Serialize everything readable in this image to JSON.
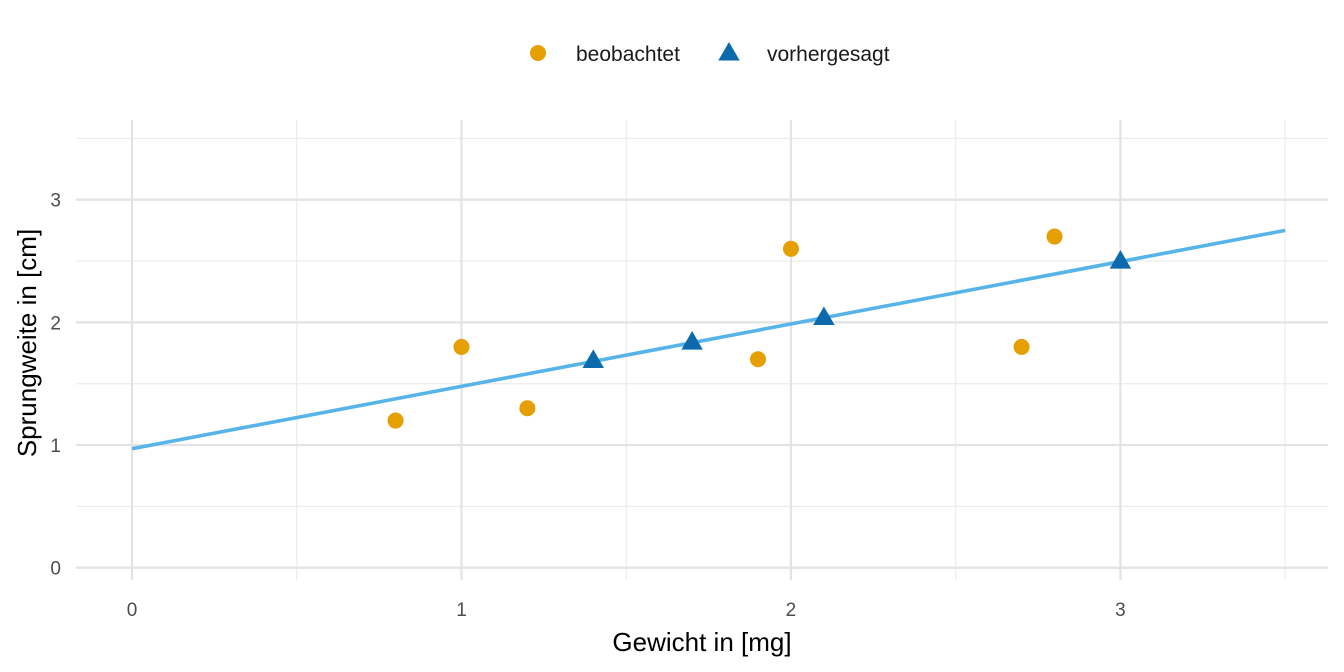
{
  "chart_data": {
    "type": "scatter",
    "xlabel": "Gewicht in [mg]",
    "ylabel": "Sprungweite in [cm]",
    "xlim": [
      -0.17,
      3.63
    ],
    "ylim": [
      -0.1,
      3.65
    ],
    "x_ticks": [
      0,
      1,
      2,
      3
    ],
    "y_ticks": [
      0,
      1,
      2,
      3
    ],
    "x_minor_ticks": [
      0.5,
      1.5,
      2.5,
      3.5
    ],
    "y_minor_ticks": [
      0.5,
      1.5,
      2.5,
      3.5
    ],
    "grid": true,
    "legend_position": "top",
    "series": [
      {
        "name": "beobachtet",
        "marker": "circle",
        "color": "#E69F00",
        "points": [
          {
            "x": 0.8,
            "y": 1.2
          },
          {
            "x": 1.0,
            "y": 1.8
          },
          {
            "x": 1.2,
            "y": 1.3
          },
          {
            "x": 1.9,
            "y": 1.7
          },
          {
            "x": 2.0,
            "y": 2.6
          },
          {
            "x": 2.7,
            "y": 1.8
          },
          {
            "x": 2.8,
            "y": 2.7
          }
        ]
      },
      {
        "name": "vorhergesagt",
        "marker": "triangle",
        "color": "#0C6AAD",
        "points": [
          {
            "x": 1.4,
            "y": 1.69
          },
          {
            "x": 1.7,
            "y": 1.84
          },
          {
            "x": 2.1,
            "y": 2.04
          },
          {
            "x": 3.0,
            "y": 2.5
          }
        ]
      }
    ],
    "regression_line": {
      "color": "#56B4E9",
      "from": {
        "x": 0,
        "y": 0.97
      },
      "to": {
        "x": 3.5,
        "y": 2.75
      }
    }
  }
}
